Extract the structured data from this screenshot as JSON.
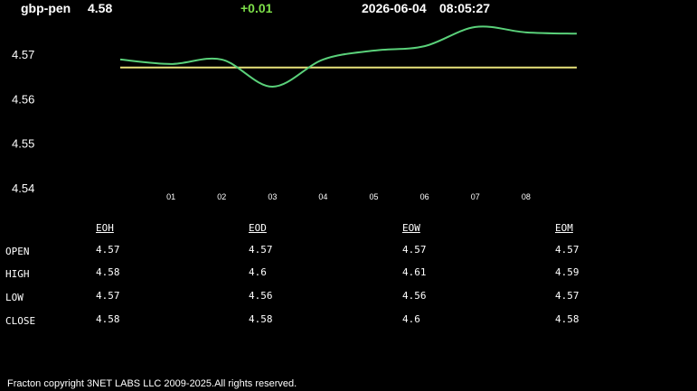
{
  "header": {
    "pair": "gbp-pen",
    "price": "4.58",
    "change": "+0.01",
    "date": "2026-06-04",
    "time": "08:05:27"
  },
  "colors": {
    "background": "#000000",
    "price_line": "#5ad17a",
    "reference_line": "#e8e27a",
    "change_positive": "#7ee04a",
    "text": "#ffffff"
  },
  "chart_data": {
    "type": "line",
    "x": [
      "",
      "01",
      "02",
      "03",
      "04",
      "05",
      "06",
      "07",
      "08",
      ""
    ],
    "x_tick_labels": [
      "01",
      "02",
      "03",
      "04",
      "05",
      "06",
      "07",
      "08"
    ],
    "y_tick_labels": [
      "4.57",
      "4.56",
      "4.55",
      "4.54"
    ],
    "ylim": [
      4.54,
      4.577
    ],
    "grid": false,
    "series": [
      {
        "values": [
          4.5688,
          4.5678,
          4.5688,
          4.5627,
          4.5688,
          4.5708,
          4.5718,
          4.5761,
          4.5749,
          4.5746
        ]
      }
    ],
    "reference_value": 4.567
  },
  "table": {
    "columns": [
      "EOH",
      "EOD",
      "EOW",
      "EOM"
    ],
    "rows": [
      {
        "label": "OPEN",
        "values": [
          "4.57",
          "4.57",
          "4.57",
          "4.57"
        ]
      },
      {
        "label": "HIGH",
        "values": [
          "4.58",
          "4.6",
          "4.61",
          "4.59"
        ]
      },
      {
        "label": "LOW",
        "values": [
          "4.57",
          "4.56",
          "4.56",
          "4.57"
        ]
      },
      {
        "label": "CLOSE",
        "values": [
          "4.58",
          "4.58",
          "4.6",
          "4.58"
        ]
      }
    ]
  },
  "footer": {
    "copyright": "Fracton copyright 3NET LABS LLC 2009-2025.All rights reserved."
  }
}
